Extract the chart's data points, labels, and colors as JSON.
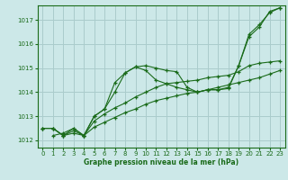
{
  "xlabel": "Graphe pression niveau de la mer (hPa)",
  "background_color": "#cce8e8",
  "grid_color": "#aacccc",
  "line_color": "#1a6b1a",
  "ylim": [
    1011.7,
    1017.6
  ],
  "xlim": [
    -0.5,
    23.5
  ],
  "yticks": [
    1012,
    1013,
    1014,
    1015,
    1016,
    1017
  ],
  "xticks": [
    0,
    1,
    2,
    3,
    4,
    5,
    6,
    7,
    8,
    9,
    10,
    11,
    12,
    13,
    14,
    15,
    16,
    17,
    18,
    19,
    20,
    21,
    22,
    23
  ],
  "series": [
    {
      "x": [
        0,
        1,
        2,
        3,
        4,
        5,
        6,
        7,
        8,
        9,
        10,
        11,
        12,
        13,
        14,
        15,
        16,
        17,
        18,
        19,
        20,
        21,
        22,
        23
      ],
      "y": [
        1012.5,
        1012.5,
        1012.2,
        1012.5,
        1012.2,
        1013.0,
        1013.3,
        1014.4,
        1014.8,
        1015.05,
        1015.1,
        1015.0,
        1014.9,
        1014.85,
        1014.2,
        1014.0,
        1014.1,
        1014.1,
        1014.15,
        1015.1,
        1016.3,
        1016.7,
        1017.35,
        1017.5
      ]
    },
    {
      "x": [
        0,
        1,
        2,
        3,
        4,
        5,
        6,
        7,
        8,
        9,
        10,
        11,
        12,
        13,
        14,
        15,
        16,
        17,
        18,
        19,
        20,
        21,
        22,
        23
      ],
      "y": [
        1012.5,
        1012.5,
        1012.2,
        1012.4,
        1012.2,
        1012.8,
        1013.1,
        1013.35,
        1013.55,
        1013.8,
        1014.0,
        1014.2,
        1014.35,
        1014.4,
        1014.45,
        1014.5,
        1014.6,
        1014.65,
        1014.7,
        1014.85,
        1015.1,
        1015.2,
        1015.25,
        1015.3
      ]
    },
    {
      "x": [
        0,
        1,
        2,
        3,
        4,
        5,
        6,
        7,
        8,
        9,
        10,
        11,
        12,
        13,
        14,
        15,
        16,
        17,
        18,
        19,
        20,
        21,
        22,
        23
      ],
      "y": [
        1012.5,
        1012.5,
        1012.2,
        1012.3,
        1012.2,
        1012.55,
        1012.75,
        1012.95,
        1013.15,
        1013.3,
        1013.5,
        1013.65,
        1013.75,
        1013.85,
        1013.95,
        1014.0,
        1014.1,
        1014.2,
        1014.3,
        1014.4,
        1014.5,
        1014.6,
        1014.75,
        1014.9
      ]
    },
    {
      "x": [
        1,
        2,
        3,
        4,
        5,
        6,
        7,
        8,
        9,
        10,
        11,
        12,
        13,
        14,
        15,
        16,
        17,
        18,
        19,
        20,
        21,
        22,
        23
      ],
      "y": [
        1012.2,
        1012.3,
        1012.5,
        1012.2,
        1013.0,
        1013.3,
        1014.0,
        1014.8,
        1015.05,
        1014.9,
        1014.5,
        1014.35,
        1014.2,
        1014.1,
        1014.0,
        1014.1,
        1014.1,
        1014.2,
        1015.1,
        1016.4,
        1016.8,
        1017.3,
        1017.5
      ]
    }
  ]
}
